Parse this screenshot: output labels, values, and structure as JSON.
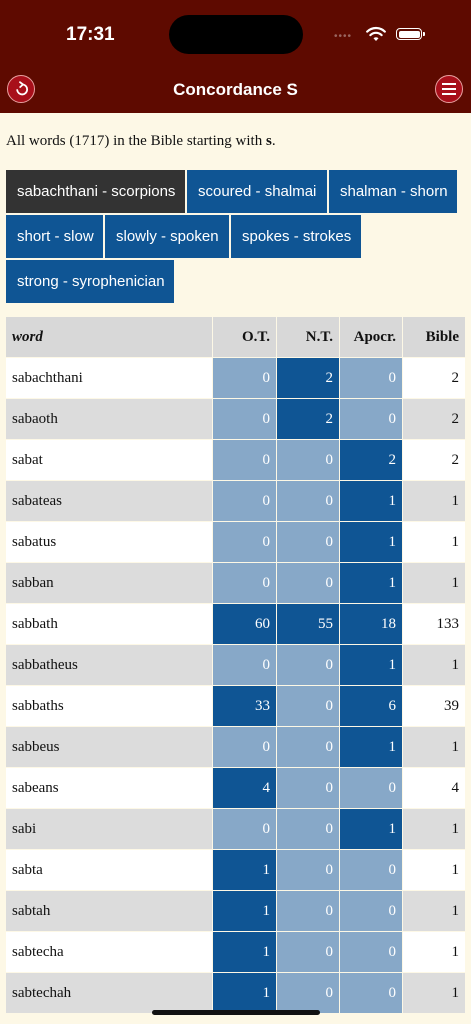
{
  "status": {
    "time": "17:31"
  },
  "nav": {
    "title": "Concordance S",
    "back_icon": "back-arrow-icon",
    "menu_icon": "hamburger-menu-icon"
  },
  "intro": {
    "prefix": "All words (1717) in the Bible starting with ",
    "letter": "s",
    "suffix": "."
  },
  "ranges": [
    "sabachthani - scorpions",
    "scoured - shalmai",
    "shalman - shorn",
    "short - slow",
    "slowly - spoken",
    "spokes - strokes",
    "strong - syrophenician"
  ],
  "active_range": 0,
  "table": {
    "headers": [
      "word",
      "O.T.",
      "N.T.",
      "Apocr.",
      "Bible"
    ],
    "rows": [
      [
        "sabachthani",
        "0",
        "2",
        "0",
        "2"
      ],
      [
        "sabaoth",
        "0",
        "2",
        "0",
        "2"
      ],
      [
        "sabat",
        "0",
        "0",
        "2",
        "2"
      ],
      [
        "sabateas",
        "0",
        "0",
        "1",
        "1"
      ],
      [
        "sabatus",
        "0",
        "0",
        "1",
        "1"
      ],
      [
        "sabban",
        "0",
        "0",
        "1",
        "1"
      ],
      [
        "sabbath",
        "60",
        "55",
        "18",
        "133"
      ],
      [
        "sabbatheus",
        "0",
        "0",
        "1",
        "1"
      ],
      [
        "sabbaths",
        "33",
        "0",
        "6",
        "39"
      ],
      [
        "sabbeus",
        "0",
        "0",
        "1",
        "1"
      ],
      [
        "sabeans",
        "4",
        "0",
        "0",
        "4"
      ],
      [
        "sabi",
        "0",
        "0",
        "1",
        "1"
      ],
      [
        "sabta",
        "1",
        "0",
        "0",
        "1"
      ],
      [
        "sabtah",
        "1",
        "0",
        "0",
        "1"
      ],
      [
        "sabtecha",
        "1",
        "0",
        "0",
        "1"
      ],
      [
        "sabtechah",
        "1",
        "0",
        "0",
        "1"
      ]
    ]
  },
  "colors": {
    "bar": "#5e0a00",
    "background": "#fdf8e6",
    "nonzero_cell": "#0f5594",
    "zero_cell": "#87a8c8",
    "active_range": "#333333"
  }
}
